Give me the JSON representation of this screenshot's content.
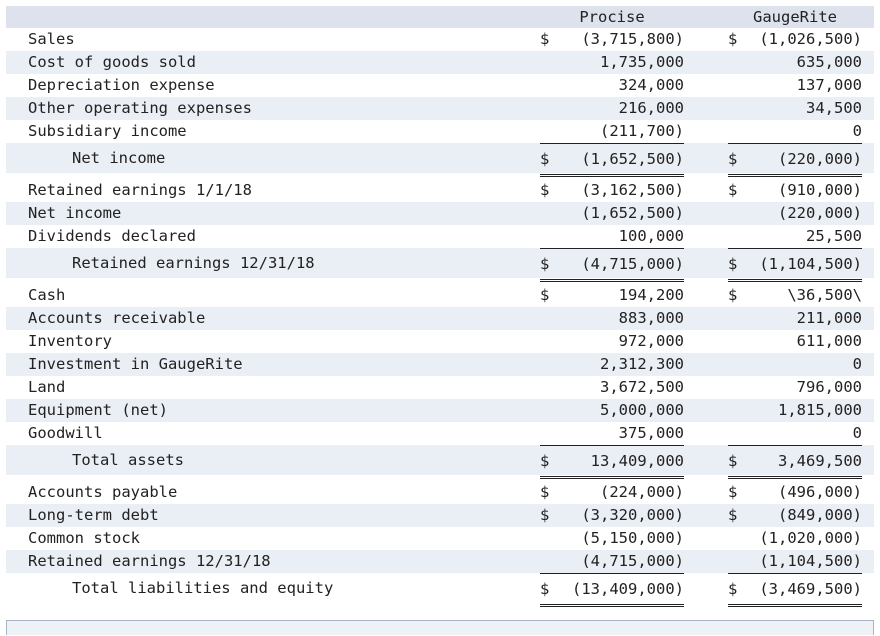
{
  "headers": {
    "procise": "Procise",
    "gaugerite": "GaugeRite"
  },
  "rows": [
    {
      "label": "Sales",
      "p_sym": "$",
      "p": "(3,715,800)",
      "g_sym": "$",
      "g": "(1,026,500)",
      "type": "normal"
    },
    {
      "label": "Cost of goods sold",
      "p": "1,735,000",
      "g": "635,000",
      "type": "normal"
    },
    {
      "label": "Depreciation expense",
      "p": "324,000",
      "g": "137,000",
      "type": "normal"
    },
    {
      "label": "Other operating expenses",
      "p": "216,000",
      "g": "34,500",
      "type": "normal"
    },
    {
      "label": "Subsidiary income",
      "p": "(211,700)",
      "g": "0",
      "type": "normal"
    },
    {
      "label": "Net income",
      "p_sym": "$",
      "p": "(1,652,500)",
      "g_sym": "$",
      "g": "(220,000)",
      "type": "total"
    },
    {
      "label": "Retained earnings 1/1/18",
      "p_sym": "$",
      "p": "(3,162,500)",
      "g_sym": "$",
      "g": "(910,000)",
      "type": "normal"
    },
    {
      "label": "Net income",
      "p": "(1,652,500)",
      "g": "(220,000)",
      "type": "normal"
    },
    {
      "label": "Dividends declared",
      "p": "100,000",
      "g": "25,500",
      "type": "normal"
    },
    {
      "label": "Retained earnings 12/31/18",
      "p_sym": "$",
      "p": "(4,715,000)",
      "g_sym": "$",
      "g": "(1,104,500)",
      "type": "total"
    },
    {
      "label": "Cash",
      "p_sym": "$",
      "p": "194,200",
      "g_sym": "$",
      "g": "\\36,500\\",
      "type": "normal"
    },
    {
      "label": "Accounts receivable",
      "p": "883,000",
      "g": "211,000",
      "type": "normal"
    },
    {
      "label": "Inventory",
      "p": "972,000",
      "g": "611,000",
      "type": "normal"
    },
    {
      "label": "Investment in GaugeRite",
      "p": "2,312,300",
      "g": "0",
      "type": "normal"
    },
    {
      "label": "Land",
      "p": "3,672,500",
      "g": "796,000",
      "type": "normal"
    },
    {
      "label": "Equipment (net)",
      "p": "5,000,000",
      "g": "1,815,000",
      "type": "normal"
    },
    {
      "label": "Goodwill",
      "p": "375,000",
      "g": "0",
      "type": "normal"
    },
    {
      "label": "Total assets",
      "p_sym": "$",
      "p": "13,409,000",
      "g_sym": "$",
      "g": "3,469,500",
      "type": "total"
    },
    {
      "label": "Accounts payable",
      "p_sym": "$",
      "p": "(224,000)",
      "g_sym": "$",
      "g": "(496,000)",
      "type": "normal"
    },
    {
      "label": "Long-term debt",
      "p_sym": "$",
      "p": "(3,320,000)",
      "g_sym": "$",
      "g": "(849,000)",
      "type": "normal"
    },
    {
      "label": "Common stock",
      "p": "(5,150,000)",
      "g": "(1,020,000)",
      "type": "normal"
    },
    {
      "label": "Retained earnings 12/31/18",
      "p": "(4,715,000)",
      "g": "(1,104,500)",
      "type": "normal"
    },
    {
      "label": "Total liabilities and equity",
      "p_sym": "$",
      "p": "(13,409,000)",
      "g_sym": "$",
      "g": "(3,469,500)",
      "type": "total"
    }
  ]
}
